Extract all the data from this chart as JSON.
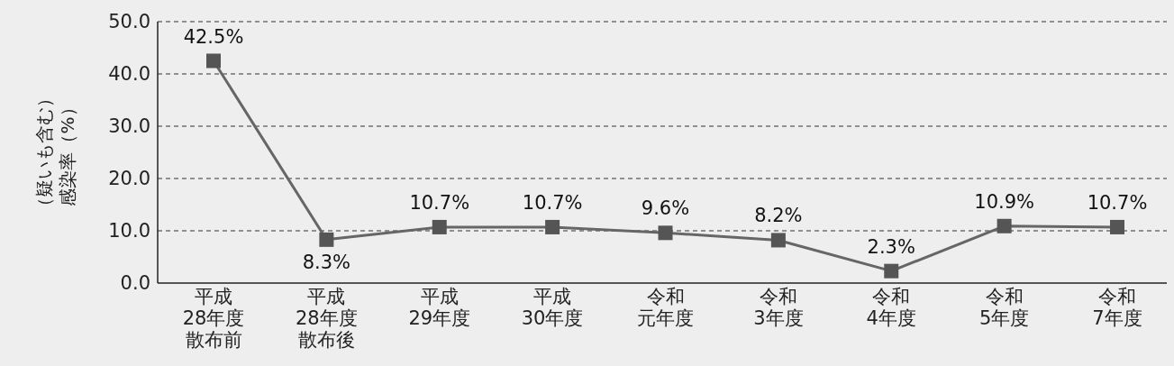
{
  "chart_data": {
    "type": "line",
    "ylabel": "感染率（%）（疑いも含む）",
    "categories": [
      "平成28年度散布前",
      "平成28年度散布後",
      "平成29年度",
      "平成30年度",
      "令和元年度",
      "令和3年度",
      "令和4年度",
      "令和5年度",
      "令和7年度"
    ],
    "series": [
      {
        "color": "#666666",
        "values": [
          42.5,
          8.3,
          10.7,
          10.7,
          9.6,
          8.2,
          2.3,
          10.9,
          10.7
        ]
      }
    ],
    "value_labels": [
      "42.5%",
      "8.3%",
      "10.7%",
      "10.7%",
      "9.6%",
      "8.2%",
      "2.3%",
      "10.9%",
      "10.7%"
    ],
    "ylim": [
      0,
      50
    ],
    "yticks": [
      {
        "value": 0,
        "label": "0.0"
      },
      {
        "value": 10,
        "label": "10.0"
      },
      {
        "value": 20,
        "label": "20.0"
      },
      {
        "value": 30,
        "label": "30.0"
      },
      {
        "value": 40,
        "label": "40.0"
      },
      {
        "value": 50,
        "label": "50.0"
      }
    ],
    "grid": "y",
    "marker": "square",
    "line_style": "solid"
  }
}
